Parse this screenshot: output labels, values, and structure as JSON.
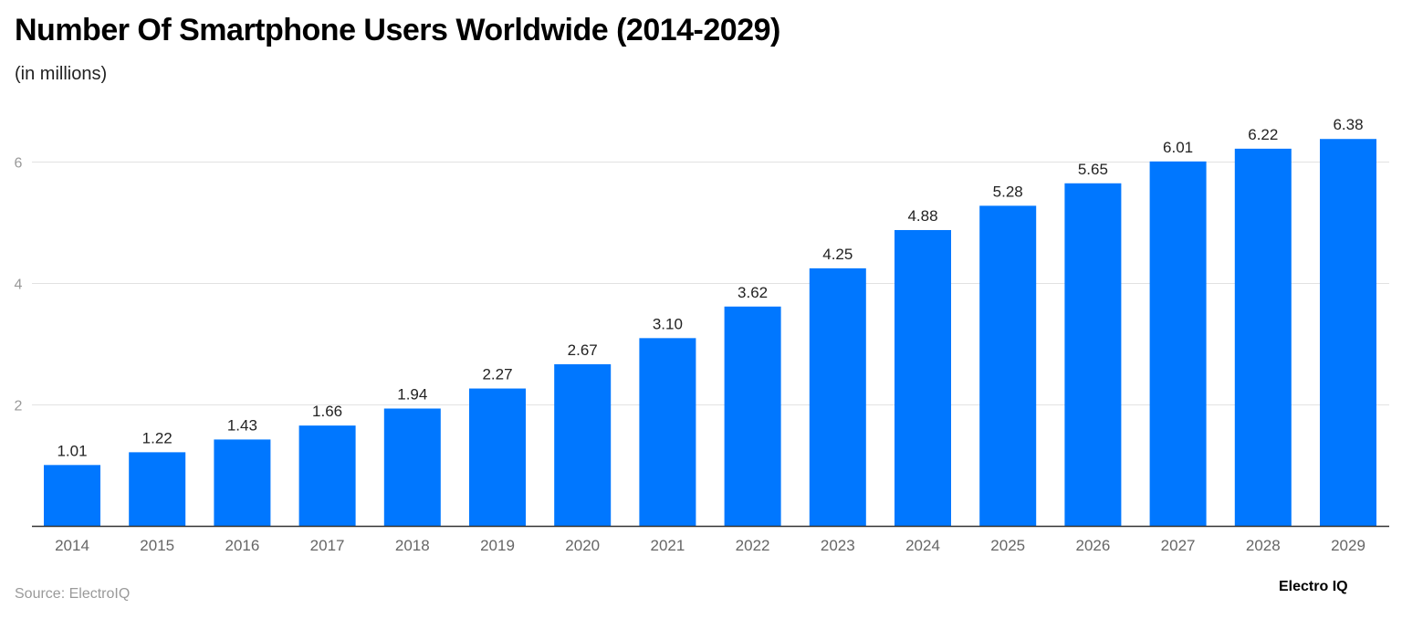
{
  "chart_data": {
    "type": "bar",
    "title": "Number Of Smartphone Users Worldwide (2014-2029)",
    "subtitle": "(in millions)",
    "categories": [
      "2014",
      "2015",
      "2016",
      "2017",
      "2018",
      "2019",
      "2020",
      "2021",
      "2022",
      "2023",
      "2024",
      "2025",
      "2026",
      "2027",
      "2028",
      "2029"
    ],
    "values": [
      1.01,
      1.22,
      1.43,
      1.66,
      1.94,
      2.27,
      2.67,
      3.1,
      3.62,
      4.25,
      4.88,
      5.28,
      5.65,
      6.01,
      6.22,
      6.38
    ],
    "data_labels": [
      "1.01",
      "1.22",
      "1.43",
      "1.66",
      "1.94",
      "2.27",
      "2.67",
      "3.10",
      "3.62",
      "4.25",
      "4.88",
      "5.28",
      "5.65",
      "6.01",
      "6.22",
      "6.38"
    ],
    "yticks": [
      2,
      4,
      6
    ],
    "ylim": [
      0,
      6.6
    ],
    "grid": true,
    "xlabel": "",
    "ylabel": "",
    "bar_color": "#0077ff"
  },
  "footer": {
    "source": "Source: ElectroIQ",
    "logo": "Electro IQ"
  }
}
